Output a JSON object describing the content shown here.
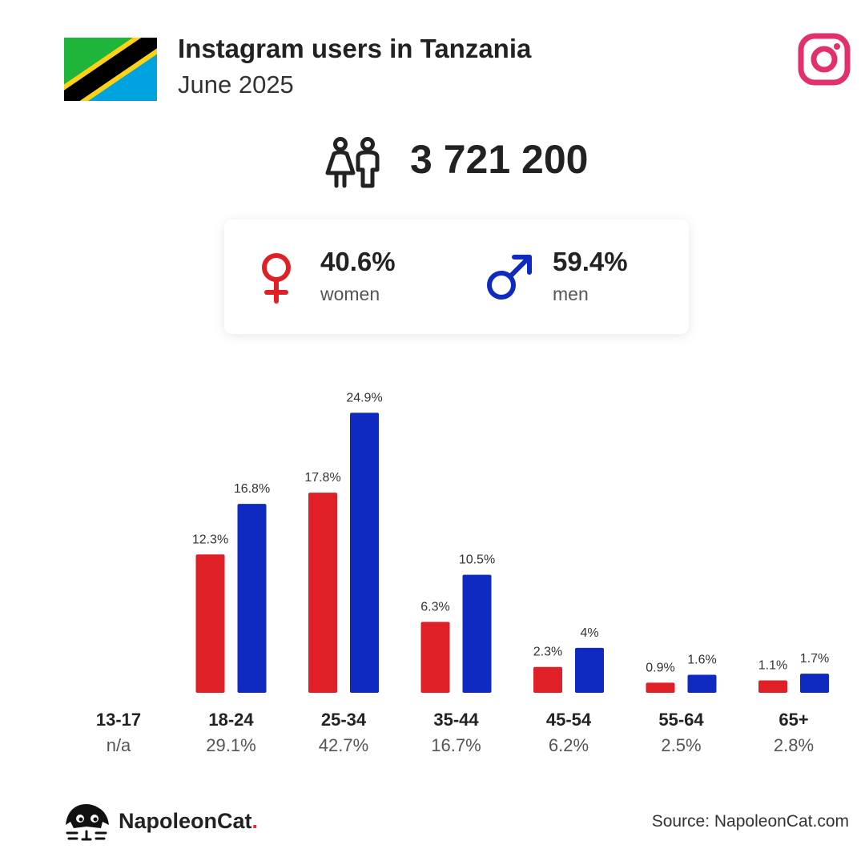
{
  "header": {
    "title": "Instagram users in Tanzania",
    "subtitle": "June 2025",
    "flag_icon": "tanzania-flag-icon",
    "platform_icon": "instagram-icon"
  },
  "total": {
    "value": "3 721 200",
    "icon": "users-icon"
  },
  "gender": {
    "women": {
      "percent": "40.6%",
      "label": "women",
      "color": "#e02027",
      "icon": "female-icon"
    },
    "men": {
      "percent": "59.4%",
      "label": "men",
      "color": "#0f2ac0",
      "icon": "male-icon"
    }
  },
  "chart_data": {
    "type": "bar",
    "categories": [
      "13-17",
      "18-24",
      "25-34",
      "35-44",
      "45-54",
      "55-64",
      "65+"
    ],
    "category_totals": [
      "n/a",
      "29.1%",
      "42.7%",
      "16.7%",
      "6.2%",
      "2.5%",
      "2.8%"
    ],
    "series": [
      {
        "color": "#e02027",
        "values": [
          null,
          12.3,
          17.8,
          6.3,
          2.3,
          0.9,
          1.1
        ],
        "labels": [
          "",
          "12.3%",
          "17.8%",
          "6.3%",
          "2.3%",
          "0.9%",
          "1.1%"
        ]
      },
      {
        "color": "#0f2ac0",
        "values": [
          null,
          16.8,
          24.9,
          10.5,
          4,
          1.6,
          1.7
        ],
        "labels": [
          "",
          "16.8%",
          "24.9%",
          "10.5%",
          "4%",
          "1.6%",
          "1.7%"
        ]
      }
    ],
    "ylim": [
      0,
      25
    ],
    "grid": false
  },
  "footer": {
    "brand_name": "NapoleonCat",
    "brand_dot": ".",
    "brand_icon": "napoleoncat-logo-icon",
    "source": "Source: NapoleonCat.com"
  }
}
